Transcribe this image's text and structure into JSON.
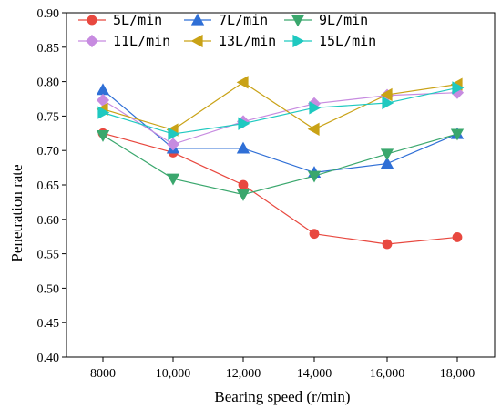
{
  "chart_data": {
    "type": "line",
    "title": "",
    "xlabel": "Bearing speed (r/min)",
    "ylabel": "Penetration rate",
    "categories": [
      "8000",
      "10,000",
      "12,000",
      "14,000",
      "16,000",
      "18,000"
    ],
    "ylim": [
      0.4,
      0.9
    ],
    "yticks": [
      "0.40",
      "0.45",
      "0.50",
      "0.55",
      "0.60",
      "0.65",
      "0.70",
      "0.75",
      "0.80",
      "0.85",
      "0.90"
    ],
    "grid": false,
    "legend_position": "top",
    "series": [
      {
        "name": "5L/min",
        "color": "#e8483f",
        "marker": "circle",
        "values": [
          0.725,
          0.697,
          0.65,
          0.579,
          0.564,
          0.574
        ]
      },
      {
        "name": "7L/min",
        "color": "#2f6fd6",
        "marker": "triangle-up",
        "values": [
          0.788,
          0.703,
          0.703,
          0.668,
          0.681,
          0.724
        ]
      },
      {
        "name": "9L/min",
        "color": "#3aa76d",
        "marker": "triangle-down",
        "values": [
          0.722,
          0.659,
          0.636,
          0.663,
          0.695,
          0.724
        ]
      },
      {
        "name": "11L/min",
        "color": "#c78be0",
        "marker": "diamond",
        "values": [
          0.773,
          0.709,
          0.742,
          0.768,
          0.78,
          0.784
        ]
      },
      {
        "name": "13L/min",
        "color": "#c9a216",
        "marker": "triangle-left",
        "values": [
          0.76,
          0.73,
          0.799,
          0.731,
          0.781,
          0.796
        ]
      },
      {
        "name": "15L/min",
        "color": "#1fc9c0",
        "marker": "triangle-right",
        "values": [
          0.755,
          0.724,
          0.739,
          0.762,
          0.769,
          0.791
        ]
      }
    ]
  }
}
